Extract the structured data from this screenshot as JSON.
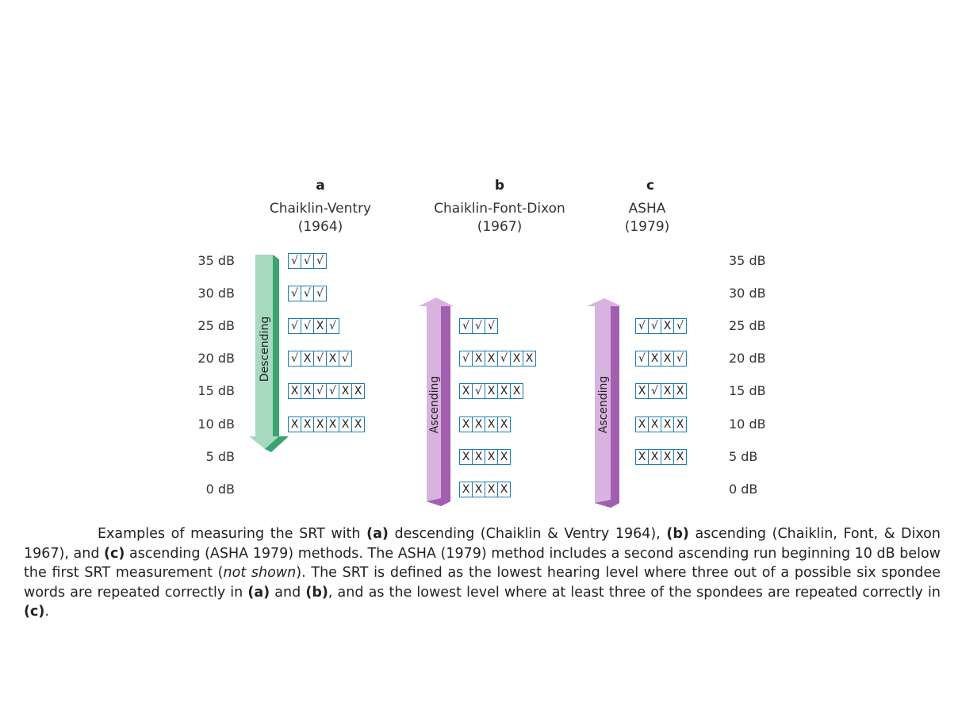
{
  "panels": [
    {
      "letter": "a",
      "title": "Chaiklin-Ventry",
      "year": "(1964)"
    },
    {
      "letter": "b",
      "title": "Chaiklin-Font-Dixon",
      "year": "(1967)"
    },
    {
      "letter": "c",
      "title": "ASHA",
      "year": "(1979)"
    }
  ],
  "levels_left": [
    "35 dB",
    "30 dB",
    "25 dB",
    "20 dB",
    "15 dB",
    "10 dB",
    "5 dB",
    "0 dB"
  ],
  "levels_right": [
    "35 dB",
    "30 dB",
    "25 dB",
    "20 dB",
    "15 dB",
    "10 dB",
    "5 dB",
    "0 dB"
  ],
  "arrows": {
    "a": {
      "label": "Descending",
      "color_face": "#a7d9bf",
      "color_side": "#3aa36e",
      "direction": "down"
    },
    "b": {
      "label": "Ascending",
      "color_face": "#d9b3e0",
      "color_side": "#a25fb0",
      "direction": "up"
    },
    "c": {
      "label": "Ascending",
      "color_face": "#d9b3e0",
      "color_side": "#a25fb0",
      "direction": "up"
    }
  },
  "responses": {
    "a": [
      {
        "level": "35 dB",
        "marks": [
          "√",
          "√",
          "√"
        ]
      },
      {
        "level": "30 dB",
        "marks": [
          "√",
          "√",
          "√"
        ]
      },
      {
        "level": "25 dB",
        "marks": [
          "√",
          "√",
          "X",
          "√"
        ]
      },
      {
        "level": "20 dB",
        "marks": [
          "√",
          "X",
          "√",
          "X",
          "√"
        ]
      },
      {
        "level": "15 dB",
        "marks": [
          "X",
          "X",
          "√",
          "√",
          "X",
          "X"
        ]
      },
      {
        "level": "10 dB",
        "marks": [
          "X",
          "X",
          "X",
          "X",
          "X",
          "X"
        ]
      }
    ],
    "b": [
      {
        "level": "25 dB",
        "marks": [
          "√",
          "√",
          "√"
        ]
      },
      {
        "level": "20 dB",
        "marks": [
          "√",
          "X",
          "X",
          "√",
          "X",
          "X"
        ]
      },
      {
        "level": "15 dB",
        "marks": [
          "X",
          "√",
          "X",
          "X",
          "X"
        ]
      },
      {
        "level": "10 dB",
        "marks": [
          "X",
          "X",
          "X",
          "X"
        ]
      },
      {
        "level": "5 dB",
        "marks": [
          "X",
          "X",
          "X",
          "X"
        ]
      },
      {
        "level": "0 dB",
        "marks": [
          "X",
          "X",
          "X",
          "X"
        ]
      }
    ],
    "c": [
      {
        "level": "25 dB",
        "marks": [
          "√",
          "√",
          "X",
          "√"
        ]
      },
      {
        "level": "20 dB",
        "marks": [
          "√",
          "X",
          "X",
          "√"
        ]
      },
      {
        "level": "15 dB",
        "marks": [
          "X",
          "√",
          "X",
          "X"
        ]
      },
      {
        "level": "10 dB",
        "marks": [
          "X",
          "X",
          "X",
          "X"
        ]
      },
      {
        "level": "5 dB",
        "marks": [
          "X",
          "X",
          "X",
          "X"
        ]
      }
    ]
  },
  "caption": {
    "t1": "Examples of measuring the SRT with ",
    "b1": "(a)",
    "t2": " descending (Chaiklin & Ventry 1964), ",
    "b2": "(b)",
    "t3": " ascending (Chaiklin, Font, & Dixon 1967), and ",
    "b3": "(c)",
    "t4": " ascending (ASHA 1979) methods. The ASHA (1979) method includes a second ascending run beginning 10 dB below the first SRT measurement (",
    "i1": "not shown",
    "t5": "). The SRT is defined as the lowest hearing level where three out of a possible six spondee words are repeated correctly in ",
    "b4": "(a)",
    "t6": " and ",
    "b5": "(b)",
    "t7": ", and as the lowest level where at least three of the spondees are repeated correctly in ",
    "b6": "(c)",
    "t8": "."
  }
}
